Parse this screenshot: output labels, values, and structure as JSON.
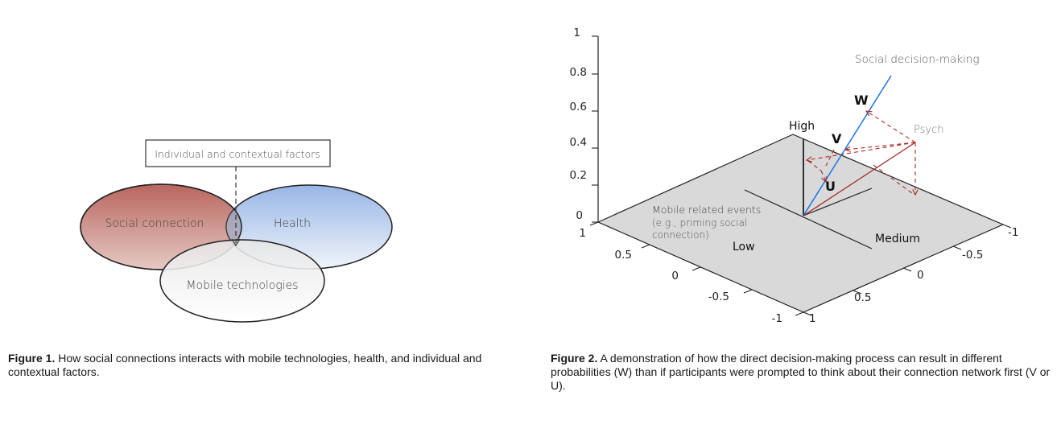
{
  "figure1": {
    "factors_box": "Individual and contextual factors",
    "circles": {
      "social": "Social connection",
      "health": "Health",
      "mobile": "Mobile technologies"
    },
    "caption_label": "Figure 1.",
    "caption_text": " How social connections interacts with mobile technologies, health, and individual and contextual factors."
  },
  "figure2": {
    "labels": {
      "social_decision": "Social decision-making",
      "psych": "Psych",
      "high": "High",
      "low": "Low",
      "medium": "Medium",
      "mobile_events_1": "Mobile related events",
      "mobile_events_2": "(e.g., priming social",
      "mobile_events_3": "connection)",
      "w": "W",
      "v": "V",
      "u": "U"
    },
    "z_ticks": [
      "0",
      "0.2",
      "0.4",
      "0.6",
      "0.8",
      "1"
    ],
    "left_ticks": [
      "1",
      "0.5",
      "0",
      "-0.5",
      "-1"
    ],
    "right_ticks": [
      "-1",
      "-0.5",
      "0",
      "0.5",
      "1"
    ],
    "colors": {
      "blue_vector": "#1a73e8",
      "red_vector": "#a52a22",
      "plane": "#d9d9d9"
    },
    "caption_label": "Figure 2.",
    "caption_text": " A demonstration of how the direct decision-making process can result in different probabilities (W) than if participants were prompted to think about their connection network first (V or U)."
  }
}
